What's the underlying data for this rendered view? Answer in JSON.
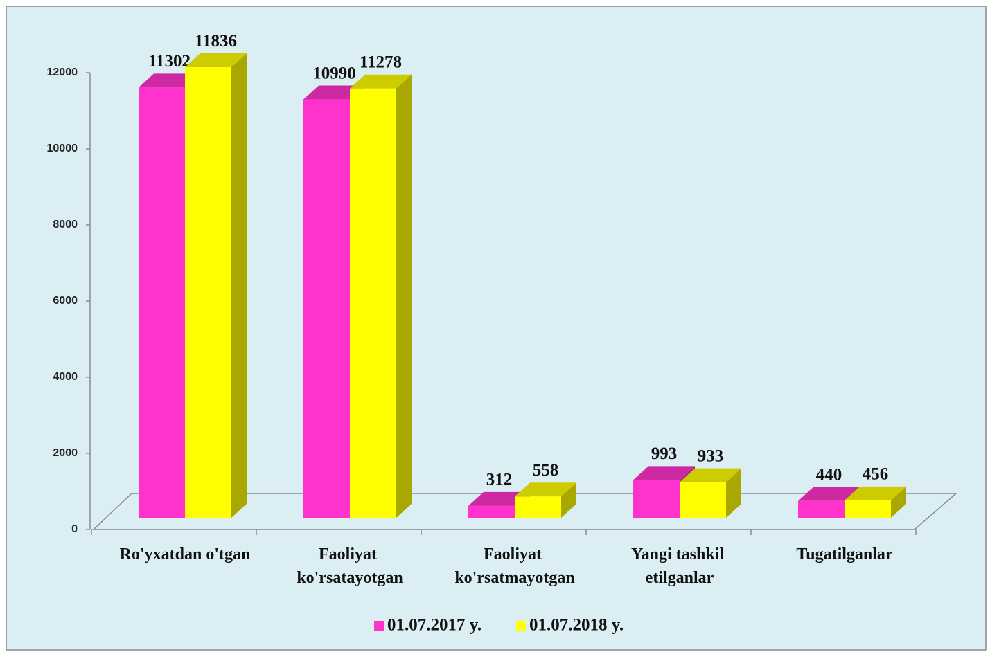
{
  "chart_data": {
    "type": "bar3d",
    "categories": [
      "Ro'yxatdan o'tgan",
      "Faoliyat\nko'rsatayotgan",
      "Faoliyat\nko'rsatmayotgan",
      "Yangi tashkil\netilganlar",
      "Tugatilganlar"
    ],
    "series": [
      {
        "name": "01.07.2017 y.",
        "color": "#ff33cc",
        "values": [
          11302,
          10990,
          312,
          993,
          440
        ]
      },
      {
        "name": "01.07.2018 y.",
        "color": "#ffff00",
        "values": [
          11836,
          11278,
          558,
          933,
          456
        ]
      }
    ],
    "ylim": [
      0,
      12000
    ],
    "yticks": [
      0,
      2000,
      4000,
      6000,
      8000,
      10000,
      12000
    ],
    "legend": "bottom"
  }
}
